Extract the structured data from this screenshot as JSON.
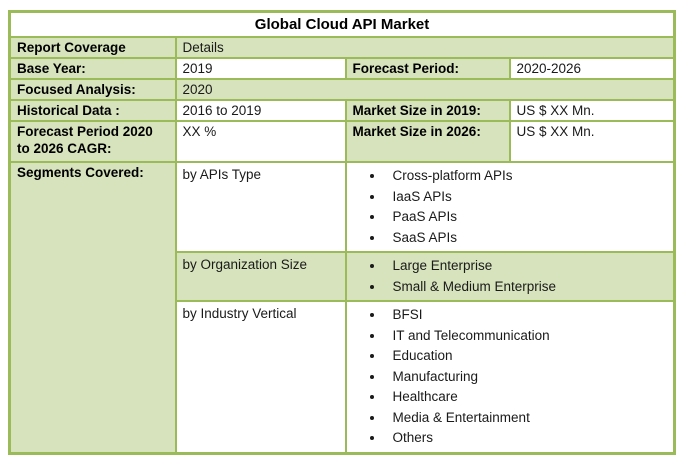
{
  "title": "Global Cloud API Market",
  "colors": {
    "border_green": "#9bbb59",
    "fill_green": "#d6e3bc",
    "cell_white": "#ffffff",
    "text": "#1a1a1a"
  },
  "rows": {
    "report_coverage": {
      "label": "Report Coverage",
      "value": "Details"
    },
    "base_year": {
      "label": "Base Year:",
      "value": "2019"
    },
    "forecast_period": {
      "label": "Forecast Period:",
      "value": "2020-2026"
    },
    "focused_analysis": {
      "label": "Focused Analysis:",
      "value": "2020"
    },
    "historical_data": {
      "label": "Historical Data :",
      "value": "2016 to 2019"
    },
    "market_size_2019": {
      "label": "Market Size in 2019:",
      "value": "US $ XX Mn."
    },
    "forecast_cagr": {
      "label": "Forecast Period 2020 to 2026 CAGR:",
      "value": "XX %"
    },
    "market_size_2026": {
      "label": "Market Size in 2026:",
      "value": "US $ XX Mn."
    },
    "segments_covered": {
      "label": "Segments Covered:"
    }
  },
  "segments": [
    {
      "name": "by APIs Type",
      "items": [
        "Cross-platform APIs",
        "IaaS APIs",
        "PaaS APIs",
        "SaaS APIs"
      ]
    },
    {
      "name": "by Organization Size",
      "items": [
        "Large Enterprise",
        "Small & Medium Enterprise"
      ]
    },
    {
      "name": "by Industry Vertical",
      "items": [
        "BFSI",
        "IT and Telecommunication",
        "Education",
        "Manufacturing",
        "Healthcare",
        "Media & Entertainment",
        "Others"
      ]
    }
  ]
}
